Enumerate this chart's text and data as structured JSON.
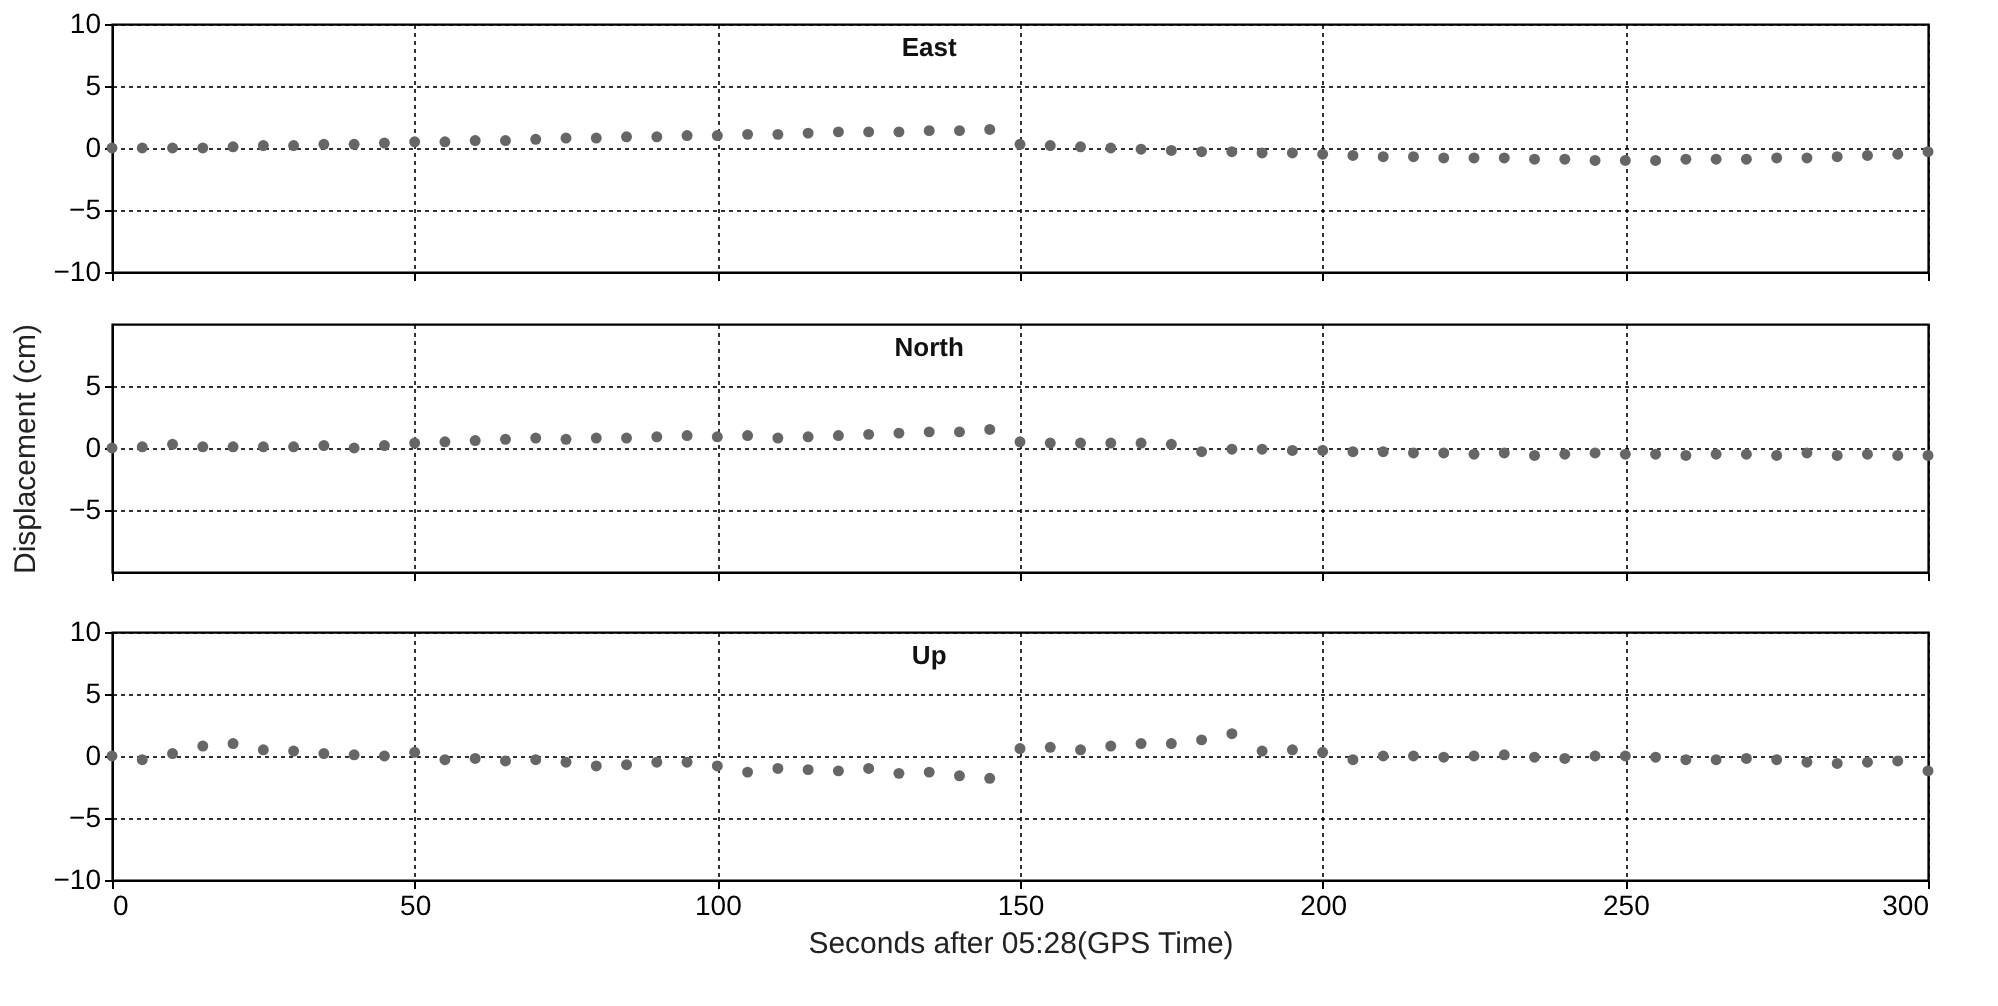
{
  "chart_data": [
    {
      "type": "scatter",
      "title": "East",
      "x": [
        0,
        5,
        10,
        15,
        20,
        25,
        30,
        35,
        40,
        45,
        50,
        55,
        60,
        65,
        70,
        75,
        80,
        85,
        90,
        95,
        100,
        105,
        110,
        115,
        120,
        125,
        130,
        135,
        140,
        145,
        150,
        155,
        160,
        165,
        170,
        175,
        180,
        185,
        190,
        195,
        200,
        205,
        210,
        215,
        220,
        225,
        230,
        235,
        240,
        245,
        250,
        255,
        260,
        265,
        270,
        275,
        280,
        285,
        290,
        295,
        300
      ],
      "series": [
        {
          "color": "#666666",
          "values": [
            0,
            0,
            0,
            0,
            0.1,
            0.2,
            0.2,
            0.3,
            0.3,
            0.4,
            0.5,
            0.5,
            0.6,
            0.6,
            0.7,
            0.8,
            0.8,
            0.9,
            0.9,
            1.0,
            1.0,
            1.1,
            1.1,
            1.2,
            1.3,
            1.3,
            1.3,
            1.4,
            1.4,
            1.5,
            0.3,
            0.2,
            0.1,
            0,
            -0.1,
            -0.2,
            -0.3,
            -0.3,
            -0.4,
            -0.4,
            -0.5,
            -0.6,
            -0.7,
            -0.7,
            -0.8,
            -0.8,
            -0.8,
            -0.9,
            -0.9,
            -1.0,
            -1.0,
            -1.0,
            -0.9,
            -0.9,
            -0.9,
            -0.8,
            -0.8,
            -0.7,
            -0.6,
            -0.5,
            -0.3
          ]
        }
      ],
      "xlim": [
        0,
        300
      ],
      "xticks": [
        0,
        50,
        100,
        150,
        200,
        250,
        300
      ],
      "ylim": [
        -10,
        10
      ],
      "yticks": [
        -10,
        -5,
        0,
        5,
        10
      ],
      "grid": true,
      "marker": "circle",
      "tick_labels": "y"
    },
    {
      "type": "scatter",
      "title": "North",
      "ylabel": "Displacement (cm)",
      "x": [
        0,
        5,
        10,
        15,
        20,
        25,
        30,
        35,
        40,
        45,
        50,
        55,
        60,
        65,
        70,
        75,
        80,
        85,
        90,
        95,
        100,
        105,
        110,
        115,
        120,
        125,
        130,
        135,
        140,
        145,
        150,
        155,
        160,
        165,
        170,
        175,
        180,
        185,
        190,
        195,
        200,
        205,
        210,
        215,
        220,
        225,
        230,
        235,
        240,
        245,
        250,
        255,
        260,
        265,
        270,
        275,
        280,
        285,
        290,
        295,
        300
      ],
      "series": [
        {
          "color": "#666666",
          "values": [
            0,
            0.1,
            0.3,
            0.1,
            0.1,
            0.1,
            0.1,
            0.2,
            0,
            0.2,
            0.4,
            0.5,
            0.6,
            0.7,
            0.8,
            0.7,
            0.8,
            0.8,
            0.9,
            1.0,
            0.9,
            1.0,
            0.8,
            0.9,
            1.0,
            1.1,
            1.2,
            1.3,
            1.3,
            1.5,
            0.5,
            0.4,
            0.4,
            0.4,
            0.4,
            0.3,
            -0.3,
            -0.1,
            -0.1,
            -0.2,
            -0.2,
            -0.3,
            -0.3,
            -0.4,
            -0.4,
            -0.5,
            -0.4,
            -0.6,
            -0.5,
            -0.4,
            -0.5,
            -0.5,
            -0.6,
            -0.5,
            -0.5,
            -0.6,
            -0.4,
            -0.6,
            -0.5,
            -0.6,
            -0.6
          ]
        }
      ],
      "xlim": [
        0,
        300
      ],
      "xticks": [
        0,
        50,
        100,
        150,
        200,
        250,
        300
      ],
      "ylim": [
        -10,
        10
      ],
      "yticks": [
        -5,
        0,
        5
      ],
      "grid": true,
      "marker": "circle",
      "tick_labels": "y"
    },
    {
      "type": "scatter",
      "title": "Up",
      "xlabel": "Seconds after 05:28(GPS Time)",
      "x": [
        0,
        5,
        10,
        15,
        20,
        25,
        30,
        35,
        40,
        45,
        50,
        55,
        60,
        65,
        70,
        75,
        80,
        85,
        90,
        95,
        100,
        105,
        110,
        115,
        120,
        125,
        130,
        135,
        140,
        145,
        150,
        155,
        160,
        165,
        170,
        175,
        180,
        185,
        190,
        195,
        200,
        205,
        210,
        215,
        220,
        225,
        230,
        235,
        240,
        245,
        250,
        255,
        260,
        265,
        270,
        275,
        280,
        285,
        290,
        295,
        300
      ],
      "series": [
        {
          "color": "#666666",
          "values": [
            0,
            -0.3,
            0.2,
            0.8,
            1.0,
            0.5,
            0.4,
            0.2,
            0.1,
            0,
            0.3,
            -0.3,
            -0.2,
            -0.4,
            -0.3,
            -0.5,
            -0.8,
            -0.7,
            -0.5,
            -0.5,
            -0.8,
            -1.3,
            -1.0,
            -1.1,
            -1.2,
            -1.0,
            -1.4,
            -1.3,
            -1.6,
            -1.8,
            0.6,
            0.7,
            0.5,
            0.8,
            1.0,
            1.0,
            1.3,
            1.8,
            0.4,
            0.5,
            0.3,
            -0.3,
            0,
            0,
            -0.1,
            0,
            0.1,
            -0.1,
            -0.2,
            0,
            0,
            -0.1,
            -0.3,
            -0.3,
            -0.2,
            -0.3,
            -0.5,
            -0.6,
            -0.5,
            -0.4,
            -1.2
          ]
        }
      ],
      "xlim": [
        0,
        300
      ],
      "xticks": [
        0,
        50,
        100,
        150,
        200,
        250,
        300
      ],
      "ylim": [
        -10,
        10
      ],
      "yticks": [
        -10,
        -5,
        0,
        5,
        10
      ],
      "grid": true,
      "marker": "circle"
    }
  ]
}
